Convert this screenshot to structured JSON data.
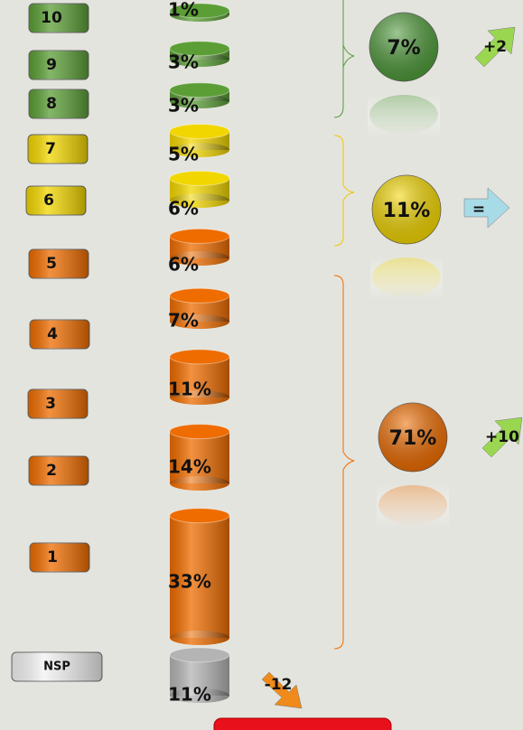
{
  "chart": {
    "type": "cylinder",
    "rows": [
      {
        "label": "10",
        "value": 1,
        "value_label": "1%",
        "color": "#5b9e36"
      },
      {
        "label": "9",
        "value": 3,
        "value_label": "3%",
        "color": "#5b9e36"
      },
      {
        "label": "8",
        "value": 3,
        "value_label": "3%",
        "color": "#5b9e36"
      },
      {
        "label": "7",
        "value": 5,
        "value_label": "5%",
        "color": "#f2d600"
      },
      {
        "label": "6",
        "value": 6,
        "value_label": "6%",
        "color": "#f2d600"
      },
      {
        "label": "5",
        "value": 6,
        "value_label": "6%",
        "color": "#ee6c00"
      },
      {
        "label": "4",
        "value": 7,
        "value_label": "7%",
        "color": "#ee6c00"
      },
      {
        "label": "3",
        "value": 11,
        "value_label": "11%",
        "color": "#ee6c00"
      },
      {
        "label": "2",
        "value": 14,
        "value_label": "14%",
        "color": "#ee6c00"
      },
      {
        "label": "1",
        "value": 33,
        "value_label": "33%",
        "color": "#ee6c00"
      },
      {
        "label": "NSP",
        "value": 11,
        "value_label": "11%",
        "color": "#b4b4b4"
      }
    ],
    "groups": [
      {
        "value": 7,
        "value_label": "7%",
        "change": "+2",
        "color": "#4e9a3a",
        "arrow_color": "#9ad650"
      },
      {
        "value": 11,
        "value_label": "11%",
        "change": "=",
        "color": "#f2d600",
        "arrow_color": "#a8dbe8"
      },
      {
        "value": 71,
        "value_label": "71%",
        "change": "+10",
        "color": "#ee6c00",
        "arrow_color": "#9ad650"
      }
    ],
    "nsp_change": "-12",
    "nsp_change_color": "#f08a1a"
  }
}
